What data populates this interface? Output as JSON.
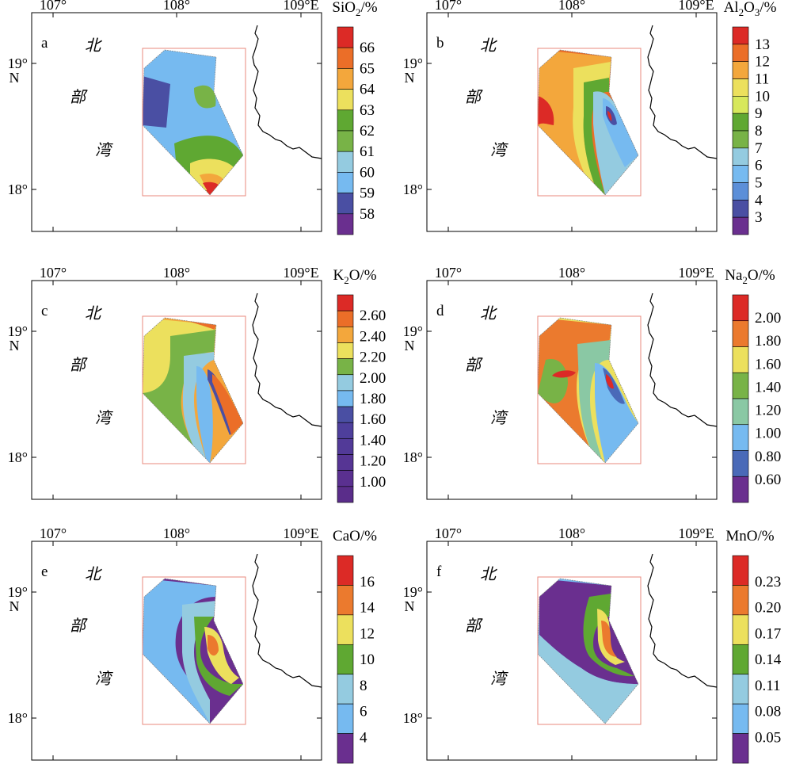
{
  "figure": {
    "colors": {
      "frame": "#000000",
      "box": "#e88a7d",
      "background": "#ffffff"
    }
  },
  "chart_data": [
    {
      "type": "heatmap",
      "panel_label": "a",
      "title": "",
      "colorbar_title": {
        "main": "SiO",
        "sub": "2",
        "rest": "/%"
      },
      "colorbar_ticks": [
        "58",
        "59",
        "60",
        "61",
        "62",
        "63",
        "64",
        "65",
        "66"
      ],
      "colorbar_colors": [
        "#6a2f8f",
        "#4a4fa3",
        "#76baf0",
        "#94cbe0",
        "#78b347",
        "#5fa832",
        "#ece05d",
        "#f3a73c",
        "#eb6e28",
        "#dc2a26"
      ],
      "x_ticks": [
        "107°",
        "108°",
        "109°E"
      ],
      "y_ticks": [
        "19°",
        "18°"
      ],
      "y_tick_suffix": "N",
      "map_labels": [
        "北",
        "部",
        "湾"
      ],
      "contour_color_indices": [
        2,
        1,
        4,
        5,
        6,
        7,
        9
      ]
    },
    {
      "type": "heatmap",
      "panel_label": "b",
      "title": "",
      "colorbar_title": {
        "main": "Al",
        "sub": "2",
        "rest": "O",
        "sub2": "3",
        "rest2": "/%"
      },
      "colorbar_ticks": [
        "3",
        "4",
        "5",
        "6",
        "7",
        "8",
        "9",
        "10",
        "11",
        "12",
        "13"
      ],
      "colorbar_colors": [
        "#6a2f8f",
        "#4a4fa3",
        "#5c8fd8",
        "#76baf0",
        "#94cbe0",
        "#78b347",
        "#5fa832",
        "#d7e85c",
        "#ece05d",
        "#f3a73c",
        "#eb6e28",
        "#dc2a26"
      ],
      "x_ticks": [
        "107°",
        "108°",
        "109°E"
      ],
      "y_ticks": [
        "19°",
        "18°"
      ],
      "y_tick_suffix": "N",
      "map_labels": [
        "北",
        "部",
        "湾"
      ],
      "contour_color_indices": [
        10,
        9,
        8,
        6,
        4,
        3,
        1,
        11
      ]
    },
    {
      "type": "heatmap",
      "panel_label": "c",
      "title": "",
      "colorbar_title": {
        "main": "K",
        "sub": "2",
        "rest": "O/%"
      },
      "colorbar_ticks": [
        "1.00",
        "1.20",
        "1.40",
        "1.60",
        "1.80",
        "2.00",
        "2.20",
        "2.40",
        "2.60"
      ],
      "colorbar_colors": [
        "#5a2d8a",
        "#5a3090",
        "#563594",
        "#523a98",
        "#4e3f9c",
        "#4a4fa3",
        "#76baf0",
        "#94cbe0",
        "#78b347",
        "#ece05d",
        "#f3a73c",
        "#eb6e28",
        "#dc2a26"
      ],
      "x_ticks": [
        "107°",
        "108°",
        "109°E"
      ],
      "y_ticks": [
        "19°",
        "18°"
      ],
      "y_tick_suffix": "N",
      "map_labels": [
        "北",
        "部",
        "湾"
      ],
      "contour_color_indices": [
        10,
        9,
        8,
        7,
        6,
        5,
        11
      ]
    },
    {
      "type": "heatmap",
      "panel_label": "d",
      "title": "",
      "colorbar_title": {
        "main": "Na",
        "sub": "2",
        "rest": "O/%"
      },
      "colorbar_ticks": [
        "0.60",
        "0.80",
        "1.00",
        "1.20",
        "1.40",
        "1.60",
        "1.80",
        "2.00"
      ],
      "colorbar_colors": [
        "#6a2f8f",
        "#4a6ab8",
        "#76baf0",
        "#8ac8a4",
        "#78b347",
        "#ece05d",
        "#eb7a2e",
        "#dc2a26"
      ],
      "x_ticks": [
        "107°",
        "108°",
        "109°E"
      ],
      "y_ticks": [
        "19°",
        "18°"
      ],
      "y_tick_suffix": "N",
      "map_labels": [
        "北",
        "部",
        "湾"
      ],
      "contour_color_indices": [
        5,
        6,
        4,
        3,
        2,
        1,
        7
      ]
    },
    {
      "type": "heatmap",
      "panel_label": "e",
      "title": "",
      "colorbar_title": {
        "main": "CaO/%"
      },
      "colorbar_ticks": [
        "4",
        "6",
        "8",
        "10",
        "12",
        "14",
        "16"
      ],
      "colorbar_colors": [
        "#6a2f8f",
        "#76baf0",
        "#94cbe0",
        "#5fa832",
        "#ece05d",
        "#eb7a2e",
        "#dc2a26"
      ],
      "x_ticks": [
        "107°",
        "108°",
        "109°E"
      ],
      "y_ticks": [
        "19°",
        "18°"
      ],
      "y_tick_suffix": "N",
      "map_labels": [
        "北",
        "部",
        "湾"
      ],
      "contour_color_indices": [
        0,
        1,
        2,
        3,
        4,
        5
      ]
    },
    {
      "type": "heatmap",
      "panel_label": "f",
      "title": "",
      "colorbar_title": {
        "main": "MnO/%"
      },
      "colorbar_ticks": [
        "0.05",
        "0.08",
        "0.11",
        "0.14",
        "0.17",
        "0.20",
        "0.23"
      ],
      "colorbar_colors": [
        "#6a2f8f",
        "#76baf0",
        "#94cbe0",
        "#5fa832",
        "#ece05d",
        "#eb7a2e",
        "#dc2a26"
      ],
      "x_ticks": [
        "107°",
        "108°",
        "109°E"
      ],
      "y_ticks": [
        "19°",
        "18°"
      ],
      "y_tick_suffix": "N",
      "map_labels": [
        "北",
        "部",
        "湾"
      ],
      "contour_color_indices": [
        1,
        0,
        2,
        3,
        4,
        5
      ]
    }
  ]
}
